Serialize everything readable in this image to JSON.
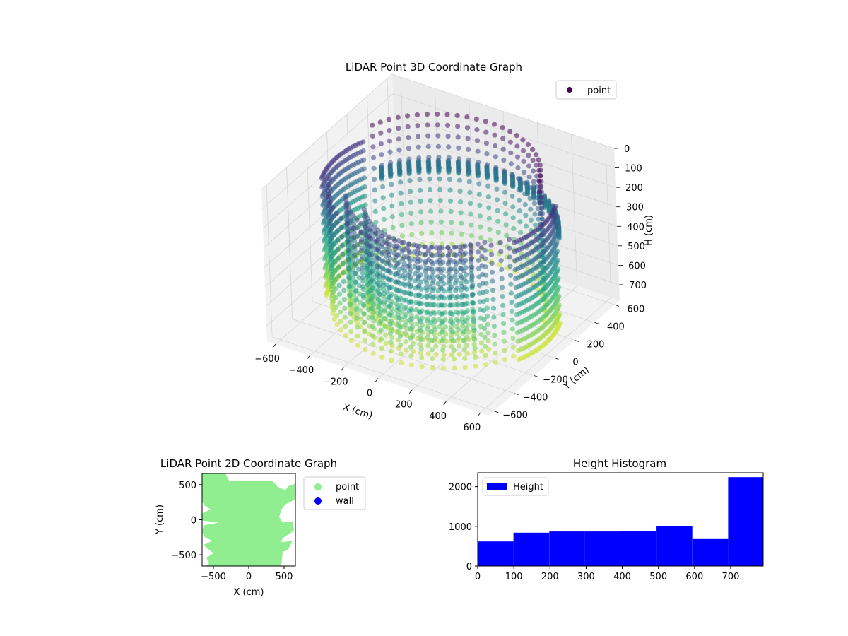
{
  "chart_data": [
    {
      "type": "scatter",
      "projection": "3d",
      "title": "LiDAR Point 3D Coordinate Graph",
      "xlabel": "X (cm)",
      "ylabel": "Y (cm)",
      "zlabel": "H (cm)",
      "xlim": [
        -650,
        650
      ],
      "ylim": [
        -650,
        650
      ],
      "zlim": [
        780,
        0
      ],
      "xticks": [
        -600,
        -400,
        -200,
        0,
        200,
        400,
        600
      ],
      "yticks": [
        -600,
        -400,
        -200,
        0,
        200,
        400,
        600
      ],
      "zticks": [
        0,
        100,
        200,
        300,
        400,
        500,
        600,
        700
      ],
      "colormap": "viridis",
      "legend": {
        "position": "top-right",
        "entries": [
          "point"
        ]
      },
      "legend_color": "#440154",
      "grid": true,
      "series": [
        {
          "name": "point",
          "arcs": [
            {
              "r": 560,
              "a0": 200,
              "a1": 340,
              "h0": 120,
              "h1": 720
            },
            {
              "r": 470,
              "a0": 210,
              "a1": 330,
              "h0": 150,
              "h1": 700
            },
            {
              "r": 380,
              "a0": 215,
              "a1": 325,
              "h0": 200,
              "h1": 680
            },
            {
              "r": 600,
              "a0": 160,
              "a1": 200,
              "h0": 120,
              "h1": 720
            },
            {
              "r": 600,
              "a0": 340,
              "a1": 380,
              "h0": 120,
              "h1": 720
            },
            {
              "r": 520,
              "a0": 20,
              "a1": 160,
              "h0": 0,
              "h1": 720
            },
            {
              "r": 600,
              "a0": 30,
              "a1": 150,
              "h0": 280,
              "h1": 340
            }
          ]
        }
      ]
    },
    {
      "type": "scatter",
      "title": "LiDAR Point 2D Coordinate Graph",
      "xlabel": "X (cm)",
      "ylabel": "Y (cm)",
      "xlim": [
        -660,
        660
      ],
      "ylim": [
        -660,
        660
      ],
      "xticks": [
        -500,
        0,
        500
      ],
      "yticks": [
        -500,
        0,
        500
      ],
      "legend": {
        "position": "outside-right",
        "entries": [
          "point",
          "wall"
        ]
      },
      "series": [
        {
          "name": "point",
          "color": "#90ee90",
          "outline": [
            [
              -660,
              660
            ],
            [
              -330,
              660
            ],
            [
              -280,
              560
            ],
            [
              330,
              560
            ],
            [
              400,
              480
            ],
            [
              450,
              450
            ],
            [
              520,
              420
            ],
            [
              560,
              480
            ],
            [
              620,
              500
            ],
            [
              660,
              520
            ],
            [
              660,
              300
            ],
            [
              600,
              260
            ],
            [
              520,
              220
            ],
            [
              470,
              160
            ],
            [
              430,
              40
            ],
            [
              480,
              -40
            ],
            [
              620,
              -20
            ],
            [
              640,
              -150
            ],
            [
              580,
              -200
            ],
            [
              480,
              -260
            ],
            [
              460,
              -320
            ],
            [
              620,
              -300
            ],
            [
              560,
              -420
            ],
            [
              480,
              -460
            ],
            [
              460,
              -660
            ],
            [
              -620,
              -660
            ],
            [
              -560,
              -620
            ],
            [
              -600,
              -540
            ],
            [
              -500,
              -480
            ],
            [
              -560,
              -430
            ],
            [
              -640,
              -360
            ],
            [
              -520,
              -300
            ],
            [
              -620,
              -250
            ],
            [
              -660,
              -180
            ],
            [
              -640,
              -80
            ],
            [
              -420,
              -40
            ],
            [
              -660,
              -10
            ],
            [
              -660,
              90
            ],
            [
              -540,
              150
            ],
            [
              -620,
              200
            ],
            [
              -660,
              260
            ],
            [
              -660,
              660
            ]
          ]
        },
        {
          "name": "wall",
          "color": "#0000ff",
          "points": []
        }
      ]
    },
    {
      "type": "bar",
      "title": "Height Histogram",
      "xlabel": "",
      "ylabel": "",
      "xlim": [
        0,
        790
      ],
      "ylim": [
        0,
        2350
      ],
      "xticks": [
        0,
        100,
        200,
        300,
        400,
        500,
        600,
        700
      ],
      "yticks": [
        0,
        1000,
        2000
      ],
      "color": "#0000ff",
      "legend": {
        "position": "top-left",
        "entries": [
          "Height"
        ]
      },
      "series": [
        {
          "name": "Height",
          "bins": [
            0,
            99,
            198,
            297,
            396,
            495,
            594,
            693,
            790
          ],
          "values": [
            620,
            840,
            870,
            870,
            890,
            1000,
            680,
            2240
          ]
        }
      ]
    }
  ]
}
